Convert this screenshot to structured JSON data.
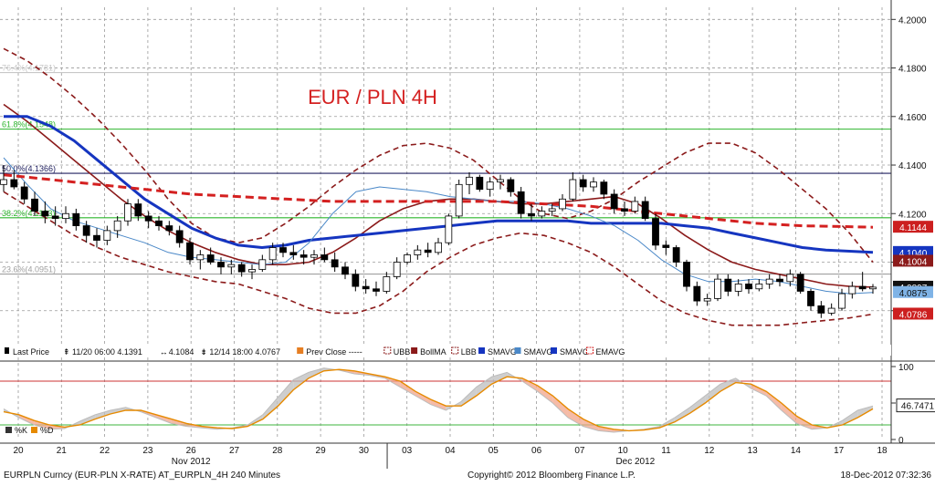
{
  "chart_data": {
    "type": "candlestick",
    "title": "EUR / PLN 4H",
    "price_axis": {
      "ylim": [
        4.066,
        4.205
      ],
      "ticks": [
        "4.2000",
        "4.1800",
        "4.1600",
        "4.1400",
        "4.1200",
        "4.1000",
        "4.0800"
      ],
      "tick_values": [
        4.2,
        4.18,
        4.16,
        4.14,
        4.12,
        4.1,
        4.08
      ]
    },
    "x_axis": {
      "day_labels": [
        "20",
        "21",
        "22",
        "23",
        "26",
        "27",
        "28",
        "29",
        "30",
        "03",
        "04",
        "05",
        "06",
        "07",
        "10",
        "11",
        "12",
        "13",
        "14",
        "17",
        "18"
      ],
      "month_labels": [
        "Nov 2012",
        "Dec 2012"
      ],
      "grid": "dashed"
    },
    "fib_levels": [
      {
        "label": "76.4%(4.1781)",
        "value": 4.1781,
        "color": "#c8c8c8"
      },
      {
        "label": "61.8%(4.1548)",
        "value": 4.1548,
        "color": "#2db52d"
      },
      {
        "label": "50.0%(4.1366)",
        "value": 4.1366,
        "color": "#202060"
      },
      {
        "label": "38.2%(4.1183)",
        "value": 4.1183,
        "color": "#2db52d"
      },
      {
        "label": "23.6%(4.0951)",
        "value": 4.0951,
        "color": "#a0a0a0"
      }
    ],
    "price_tags": [
      {
        "text": "4.1144",
        "value": 4.1144,
        "bg": "#cc1f1f",
        "fg": "#ffffff"
      },
      {
        "text": "4.1040",
        "value": 4.104,
        "bg": "#1535c0",
        "fg": "#ffffff"
      },
      {
        "text": "4.1004",
        "value": 4.1004,
        "bg": "#8b1a1a",
        "fg": "#ffffff"
      },
      {
        "text": "4.0897",
        "value": 4.0897,
        "bg": "#111111",
        "fg": "#ffffff"
      },
      {
        "text": "4.0875",
        "value": 4.0875,
        "bg": "#7fb3e6",
        "fg": "#111111"
      },
      {
        "text": "4.0786",
        "value": 4.0786,
        "bg": "#cc1f1f",
        "fg": "#ffffff"
      }
    ],
    "series": [
      {
        "name": "Last Price",
        "type": "candlestick",
        "color": "#000000",
        "ohlc": [
          [
            4.132,
            4.14,
            4.129,
            4.134
          ],
          [
            4.134,
            4.138,
            4.13,
            4.131
          ],
          [
            4.131,
            4.133,
            4.124,
            4.126
          ],
          [
            4.126,
            4.129,
            4.119,
            4.121
          ],
          [
            4.121,
            4.125,
            4.116,
            4.119
          ],
          [
            4.119,
            4.123,
            4.115,
            4.118
          ],
          [
            4.118,
            4.123,
            4.116,
            4.12
          ],
          [
            4.12,
            4.122,
            4.113,
            4.115
          ],
          [
            4.115,
            4.117,
            4.108,
            4.111
          ],
          [
            4.111,
            4.114,
            4.106,
            4.109
          ],
          [
            4.109,
            4.115,
            4.107,
            4.113
          ],
          [
            4.113,
            4.119,
            4.11,
            4.117
          ],
          [
            4.117,
            4.126,
            4.115,
            4.124
          ],
          [
            4.124,
            4.126,
            4.117,
            4.119
          ],
          [
            4.119,
            4.121,
            4.114,
            4.117
          ],
          [
            4.117,
            4.119,
            4.113,
            4.115
          ],
          [
            4.115,
            4.117,
            4.111,
            4.113
          ],
          [
            4.113,
            4.115,
            4.106,
            4.108
          ],
          [
            4.108,
            4.11,
            4.099,
            4.101
          ],
          [
            4.101,
            4.105,
            4.097,
            4.103
          ],
          [
            4.103,
            4.106,
            4.099,
            4.1
          ],
          [
            4.1,
            4.102,
            4.095,
            4.098
          ],
          [
            4.098,
            4.101,
            4.095,
            4.099
          ],
          [
            4.099,
            4.1,
            4.094,
            4.096
          ],
          [
            4.096,
            4.099,
            4.093,
            4.097
          ],
          [
            4.097,
            4.103,
            4.096,
            4.101
          ],
          [
            4.101,
            4.108,
            4.099,
            4.106
          ],
          [
            4.106,
            4.108,
            4.102,
            4.104
          ],
          [
            4.104,
            4.107,
            4.101,
            4.103
          ],
          [
            4.103,
            4.105,
            4.099,
            4.102
          ],
          [
            4.102,
            4.105,
            4.099,
            4.103
          ],
          [
            4.103,
            4.106,
            4.1,
            4.101
          ],
          [
            4.101,
            4.104,
            4.096,
            4.098
          ],
          [
            4.098,
            4.1,
            4.093,
            4.095
          ],
          [
            4.095,
            4.097,
            4.088,
            4.09
          ],
          [
            4.09,
            4.093,
            4.087,
            4.089
          ],
          [
            4.089,
            4.092,
            4.086,
            4.088
          ],
          [
            4.088,
            4.096,
            4.087,
            4.094
          ],
          [
            4.094,
            4.102,
            4.093,
            4.1
          ],
          [
            4.1,
            4.104,
            4.099,
            4.103
          ],
          [
            4.103,
            4.107,
            4.101,
            4.105
          ],
          [
            4.105,
            4.108,
            4.102,
            4.104
          ],
          [
            4.104,
            4.11,
            4.103,
            4.108
          ],
          [
            4.108,
            4.12,
            4.107,
            4.119
          ],
          [
            4.119,
            4.134,
            4.118,
            4.132
          ],
          [
            4.132,
            4.137,
            4.128,
            4.135
          ],
          [
            4.135,
            4.136,
            4.129,
            4.13
          ],
          [
            4.13,
            4.135,
            4.127,
            4.133
          ],
          [
            4.133,
            4.136,
            4.13,
            4.134
          ],
          [
            4.134,
            4.135,
            4.127,
            4.129
          ],
          [
            4.129,
            4.131,
            4.118,
            4.12
          ],
          [
            4.12,
            4.124,
            4.117,
            4.119
          ],
          [
            4.119,
            4.123,
            4.118,
            4.121
          ],
          [
            4.121,
            4.124,
            4.119,
            4.122
          ],
          [
            4.122,
            4.128,
            4.121,
            4.126
          ],
          [
            4.126,
            4.137,
            4.125,
            4.134
          ],
          [
            4.134,
            4.136,
            4.129,
            4.131
          ],
          [
            4.131,
            4.135,
            4.129,
            4.133
          ],
          [
            4.133,
            4.134,
            4.126,
            4.128
          ],
          [
            4.128,
            4.13,
            4.12,
            4.122
          ],
          [
            4.122,
            4.125,
            4.119,
            4.121
          ],
          [
            4.121,
            4.127,
            4.12,
            4.125
          ],
          [
            4.125,
            4.127,
            4.117,
            4.118
          ],
          [
            4.118,
            4.12,
            4.105,
            4.107
          ],
          [
            4.107,
            4.109,
            4.103,
            4.106
          ],
          [
            4.106,
            4.107,
            4.098,
            4.1
          ],
          [
            4.1,
            4.101,
            4.088,
            4.09
          ],
          [
            4.09,
            4.092,
            4.082,
            4.084
          ],
          [
            4.084,
            4.087,
            4.082,
            4.085
          ],
          [
            4.085,
            4.095,
            4.084,
            4.093
          ],
          [
            4.093,
            4.095,
            4.086,
            4.088
          ],
          [
            4.088,
            4.093,
            4.086,
            4.091
          ],
          [
            4.091,
            4.093,
            4.087,
            4.089
          ],
          [
            4.089,
            4.093,
            4.088,
            4.091
          ],
          [
            4.091,
            4.095,
            4.089,
            4.093
          ],
          [
            4.093,
            4.095,
            4.09,
            4.092
          ],
          [
            4.092,
            4.097,
            4.09,
            4.095
          ],
          [
            4.095,
            4.096,
            4.087,
            4.088
          ],
          [
            4.088,
            4.089,
            4.08,
            4.082
          ],
          [
            4.082,
            4.084,
            4.077,
            4.079
          ],
          [
            4.079,
            4.083,
            4.078,
            4.081
          ],
          [
            4.081,
            4.089,
            4.08,
            4.087
          ],
          [
            4.087,
            4.092,
            4.085,
            4.09
          ],
          [
            4.09,
            4.096,
            4.088,
            4.089
          ],
          [
            4.089,
            4.091,
            4.087,
            4.0897
          ]
        ]
      },
      {
        "name": "UBB",
        "color": "#8b1a1a",
        "style": "dashed",
        "values": [
          4.188,
          4.183,
          4.176,
          4.168,
          4.159,
          4.149,
          4.138,
          4.126,
          4.116,
          4.11,
          4.108,
          4.11,
          4.116,
          4.123,
          4.131,
          4.138,
          4.144,
          4.148,
          4.149,
          4.147,
          4.142,
          4.134,
          4.126,
          4.12,
          4.118,
          4.121,
          4.126,
          4.133,
          4.139,
          4.145,
          4.149,
          4.149,
          4.145,
          4.138,
          4.13,
          4.122,
          4.112,
          4.1
        ]
      },
      {
        "name": "BollMA",
        "color": "#8b1a1a",
        "style": "solid",
        "values": [
          4.165,
          4.158,
          4.15,
          4.142,
          4.134,
          4.126,
          4.119,
          4.113,
          4.108,
          4.104,
          4.101,
          4.099,
          4.099,
          4.1,
          4.104,
          4.11,
          4.117,
          4.122,
          4.125,
          4.126,
          4.126,
          4.125,
          4.124,
          4.124,
          4.125,
          4.126,
          4.127,
          4.124,
          4.118,
          4.111,
          4.105,
          4.1,
          4.097,
          4.095,
          4.093,
          4.091,
          4.09,
          4.0897
        ]
      },
      {
        "name": "LBB",
        "color": "#8b1a1a",
        "style": "dashed",
        "values": [
          4.129,
          4.123,
          4.117,
          4.111,
          4.106,
          4.102,
          4.099,
          4.096,
          4.094,
          4.092,
          4.091,
          4.088,
          4.085,
          4.081,
          4.079,
          4.079,
          4.082,
          4.088,
          4.096,
          4.102,
          4.107,
          4.11,
          4.112,
          4.111,
          4.108,
          4.104,
          4.098,
          4.091,
          4.084,
          4.079,
          4.076,
          4.074,
          4.074,
          4.074,
          4.075,
          4.076,
          4.077,
          4.0786
        ]
      },
      {
        "name": "SMAVG",
        "color": "#1535c0",
        "style": "solid",
        "width": 3,
        "values": [
          4.16,
          4.16,
          4.156,
          4.15,
          4.142,
          4.134,
          4.126,
          4.12,
          4.114,
          4.11,
          4.107,
          4.106,
          4.107,
          4.109,
          4.11,
          4.111,
          4.112,
          4.113,
          4.114,
          4.115,
          4.116,
          4.117,
          4.117,
          4.117,
          4.117,
          4.116,
          4.116,
          4.116,
          4.116,
          4.115,
          4.114,
          4.112,
          4.11,
          4.108,
          4.106,
          4.105,
          4.1045,
          4.104
        ]
      },
      {
        "name": "SMAVG",
        "color": "#4a88c8",
        "style": "solid",
        "width": 1,
        "values": [
          4.143,
          4.132,
          4.122,
          4.117,
          4.114,
          4.111,
          4.108,
          4.104,
          4.102,
          4.101,
          4.1,
          4.099,
          4.1,
          4.108,
          4.12,
          4.129,
          4.131,
          4.13,
          4.129,
          4.127,
          4.126,
          4.125,
          4.125,
          4.124,
          4.122,
          4.119,
          4.115,
          4.109,
          4.101,
          4.095,
          4.092,
          4.092,
          4.093,
          4.092,
          4.09,
          4.088,
          4.087,
          4.0875
        ]
      },
      {
        "name": "EMAVG",
        "color": "#d42020",
        "style": "dashed",
        "width": 3,
        "values": [
          4.136,
          4.135,
          4.134,
          4.133,
          4.132,
          4.131,
          4.13,
          4.129,
          4.128,
          4.1275,
          4.127,
          4.1265,
          4.126,
          4.1255,
          4.125,
          4.125,
          4.125,
          4.125,
          4.125,
          4.125,
          4.125,
          4.125,
          4.1245,
          4.124,
          4.1235,
          4.123,
          4.122,
          4.121,
          4.12,
          4.119,
          4.118,
          4.117,
          4.116,
          4.1155,
          4.115,
          4.1148,
          4.1146,
          4.1144
        ]
      }
    ],
    "legend": {
      "placement": "bottom",
      "items": [
        {
          "label": "Last Price",
          "marker": "candle",
          "color": "#000000"
        },
        {
          "label": "11/20 06:00 4.1391",
          "marker": "arrow-up",
          "color": "#000000"
        },
        {
          "label": "4.1084",
          "marker": "arrow-lr",
          "color": "#000000"
        },
        {
          "label": "12/14 18:00 4.0767",
          "marker": "arrow-down",
          "color": "#000000"
        },
        {
          "label": "Prev Close -----",
          "marker": "square",
          "color": "#e67e22"
        },
        {
          "label": "UBB",
          "marker": "square-dash",
          "color": "#8b1a1a"
        },
        {
          "label": "BollMA",
          "marker": "square",
          "color": "#8b1a1a"
        },
        {
          "label": "LBB",
          "marker": "square-dash",
          "color": "#8b1a1a"
        },
        {
          "label": "SMAVG",
          "marker": "square",
          "color": "#1535c0"
        },
        {
          "label": "SMAVG",
          "marker": "square",
          "color": "#4a88c8"
        },
        {
          "label": "SMAVG",
          "marker": "square",
          "color": "#1535c0"
        },
        {
          "label": "EMAVG",
          "marker": "square-dash",
          "color": "#d42020"
        }
      ]
    },
    "oscillator": {
      "ylim": [
        0,
        100
      ],
      "ticks": [
        "100",
        "50",
        "0"
      ],
      "tick_values": [
        100,
        50,
        0
      ],
      "levels": [
        {
          "value": 80,
          "color": "#cc3333"
        },
        {
          "value": 20,
          "color": "#3db43d"
        }
      ],
      "value_tag": "46.7471",
      "value": 46.7471,
      "legend_items": [
        {
          "label": "%K",
          "color": "#333333"
        },
        {
          "label": "%D",
          "color": "#e68a00"
        }
      ],
      "k_values": [
        42,
        30,
        20,
        14,
        15,
        25,
        34,
        40,
        44,
        38,
        30,
        22,
        18,
        16,
        14,
        16,
        20,
        34,
        58,
        82,
        92,
        98,
        95,
        90,
        88,
        84,
        72,
        60,
        48,
        40,
        52,
        72,
        86,
        92,
        80,
        66,
        50,
        30,
        18,
        12,
        10,
        12,
        14,
        18,
        30,
        44,
        60,
        76,
        84,
        70,
        60,
        40,
        22,
        14,
        16,
        26,
        40,
        46
      ],
      "d_values": [
        38,
        34,
        26,
        20,
        17,
        20,
        28,
        35,
        40,
        40,
        34,
        28,
        22,
        18,
        16,
        15,
        18,
        28,
        46,
        68,
        84,
        94,
        96,
        94,
        90,
        86,
        80,
        66,
        55,
        46,
        46,
        60,
        76,
        86,
        84,
        74,
        60,
        42,
        28,
        18,
        14,
        12,
        13,
        16,
        24,
        36,
        50,
        66,
        78,
        76,
        66,
        50,
        32,
        20,
        16,
        20,
        30,
        42
      ]
    },
    "footer": {
      "left": "EURPLN Curncy (EUR-PLN X-RATE) AT_EURPLN_4H  240 Minutes",
      "center": "Copyright© 2012 Bloomberg Finance L.P.",
      "right": "18-Dec-2012 07:32:36"
    }
  }
}
